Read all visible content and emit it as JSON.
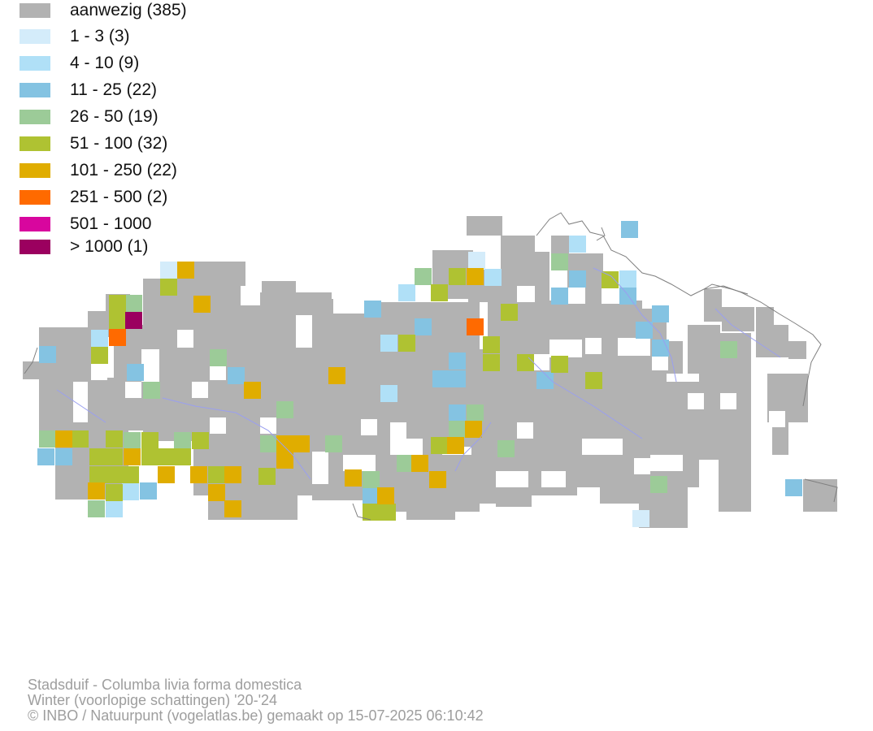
{
  "legend": [
    {
      "label": "aanwezig (385)",
      "color": "#b2b2b2"
    },
    {
      "label": "1 - 3 (3)",
      "color": "#d4ecfa"
    },
    {
      "label": "4 - 10 (9)",
      "color": "#b0e0f7"
    },
    {
      "label": "11 - 25 (22)",
      "color": "#84c3e2"
    },
    {
      "label": "26 - 50 (19)",
      "color": "#9ccb98"
    },
    {
      "label": "51 - 100 (32)",
      "color": "#afc232"
    },
    {
      "label": "101 - 250 (22)",
      "color": "#e0ad00"
    },
    {
      "label": "251 - 500 (2)",
      "color": "#ff6a00"
    },
    {
      "label": "501 - 1000",
      "color": "#d8069e"
    },
    {
      "label": "> 1000 (1)",
      "color": "#9b005f"
    }
  ],
  "caption": {
    "species": "Stadsduif - Columba livia forma domestica",
    "period": "Winter (voorlopige schattingen) '20-'24",
    "credit": "© INBO / Natuurpunt (vogelatlas.be) gemaakt op 15-07-2025 06:10:42"
  },
  "colors": {
    "background": "#ffffff",
    "border_line": "#7f7f7f",
    "river": "#9a9ff0",
    "caption_text": "#9e9e9e"
  }
}
